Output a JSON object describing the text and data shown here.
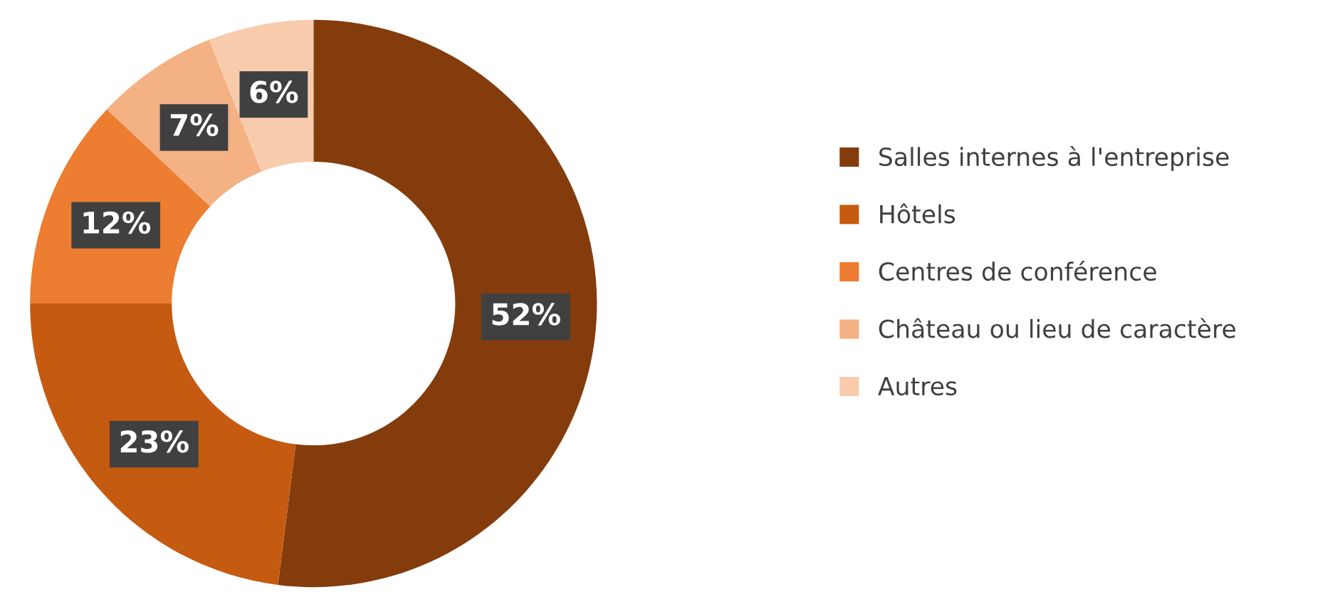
{
  "chart_data": {
    "type": "donut",
    "categories": [
      "Salles internes à l'entreprise",
      "Hôtels",
      "Centres de conférence",
      "Château ou lieu de caractère",
      "Autres"
    ],
    "values": [
      52,
      23,
      12,
      7,
      6
    ],
    "colors": [
      "#843c0c",
      "#c55a11",
      "#ed7d31",
      "#f4b183",
      "#f8cbad"
    ],
    "value_labels": [
      "52%",
      "23%",
      "12%",
      "7%",
      "6%"
    ],
    "legend": "right"
  }
}
